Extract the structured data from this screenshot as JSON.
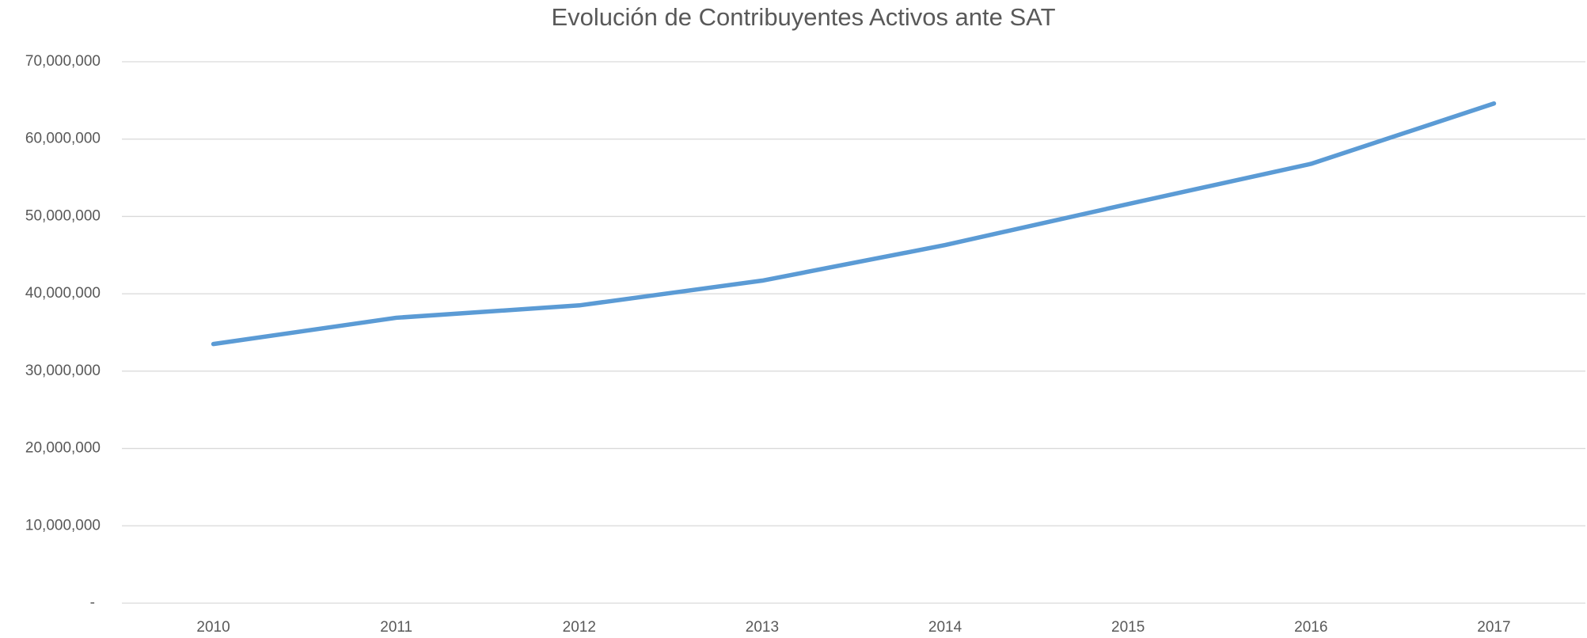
{
  "chart_data": {
    "type": "line",
    "title": "Evolución de Contribuyentes Activos ante SAT",
    "categories": [
      "2010",
      "2011",
      "2012",
      "2013",
      "2014",
      "2015",
      "2016",
      "2017"
    ],
    "series": [
      {
        "name": "Contribuyentes Activos",
        "color": "#5b9bd5",
        "values": [
          33500000,
          36900000,
          38500000,
          41700000,
          46300000,
          51600000,
          56800000,
          64600000
        ]
      }
    ],
    "ylim": [
      0,
      70000000
    ],
    "yticks": [
      {
        "value": 0,
        "label": "-"
      },
      {
        "value": 10000000,
        "label": "10,000,000"
      },
      {
        "value": 20000000,
        "label": "20,000,000"
      },
      {
        "value": 30000000,
        "label": "30,000,000"
      },
      {
        "value": 40000000,
        "label": "40,000,000"
      },
      {
        "value": 50000000,
        "label": "50,000,000"
      },
      {
        "value": 60000000,
        "label": "60,000,000"
      },
      {
        "value": 70000000,
        "label": "70,000,000"
      }
    ],
    "grid": true,
    "legend": false
  }
}
